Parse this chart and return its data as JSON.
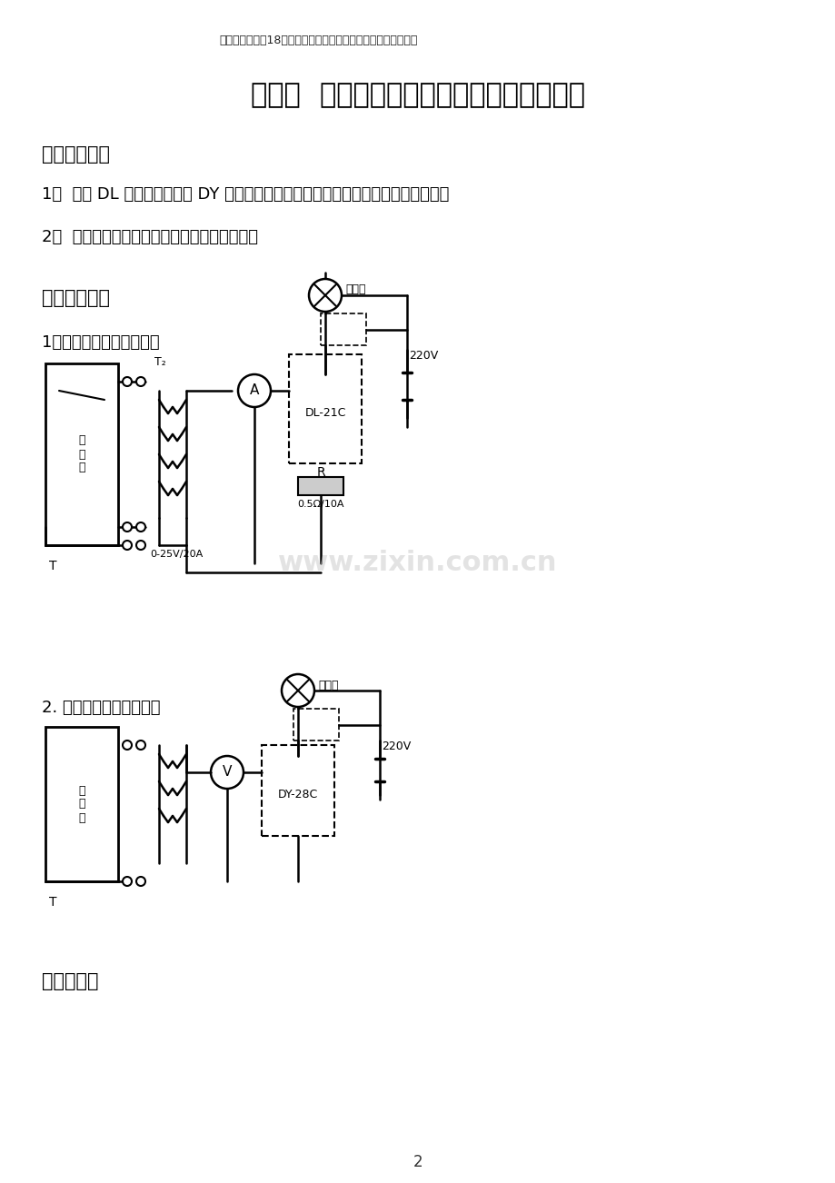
{
  "bg_color": "#ffffff",
  "header_text": "（完整版）大工18秋《电力系统继电保护实验》实验报告完整版",
  "title": "实验一  电磁型电流继电器和电压继电器实验",
  "section1_title": "一、实验目的",
  "item1": "1。  熟悉 DL 型电流继电器和 DY 型电压继电器的的实际结构，工作原理、基本特性；",
  "item2": "2。  学习动作电流、动作电压参数的整定方法。",
  "section2_title": "二、实验电路",
  "circuit1_title": "1．过流继电器实验接线图",
  "circuit2_title": "2. 低压继电器实验接线图",
  "section3_title": "三、预习题",
  "page_num": "2",
  "watermark": "www.zixin.com.cn"
}
